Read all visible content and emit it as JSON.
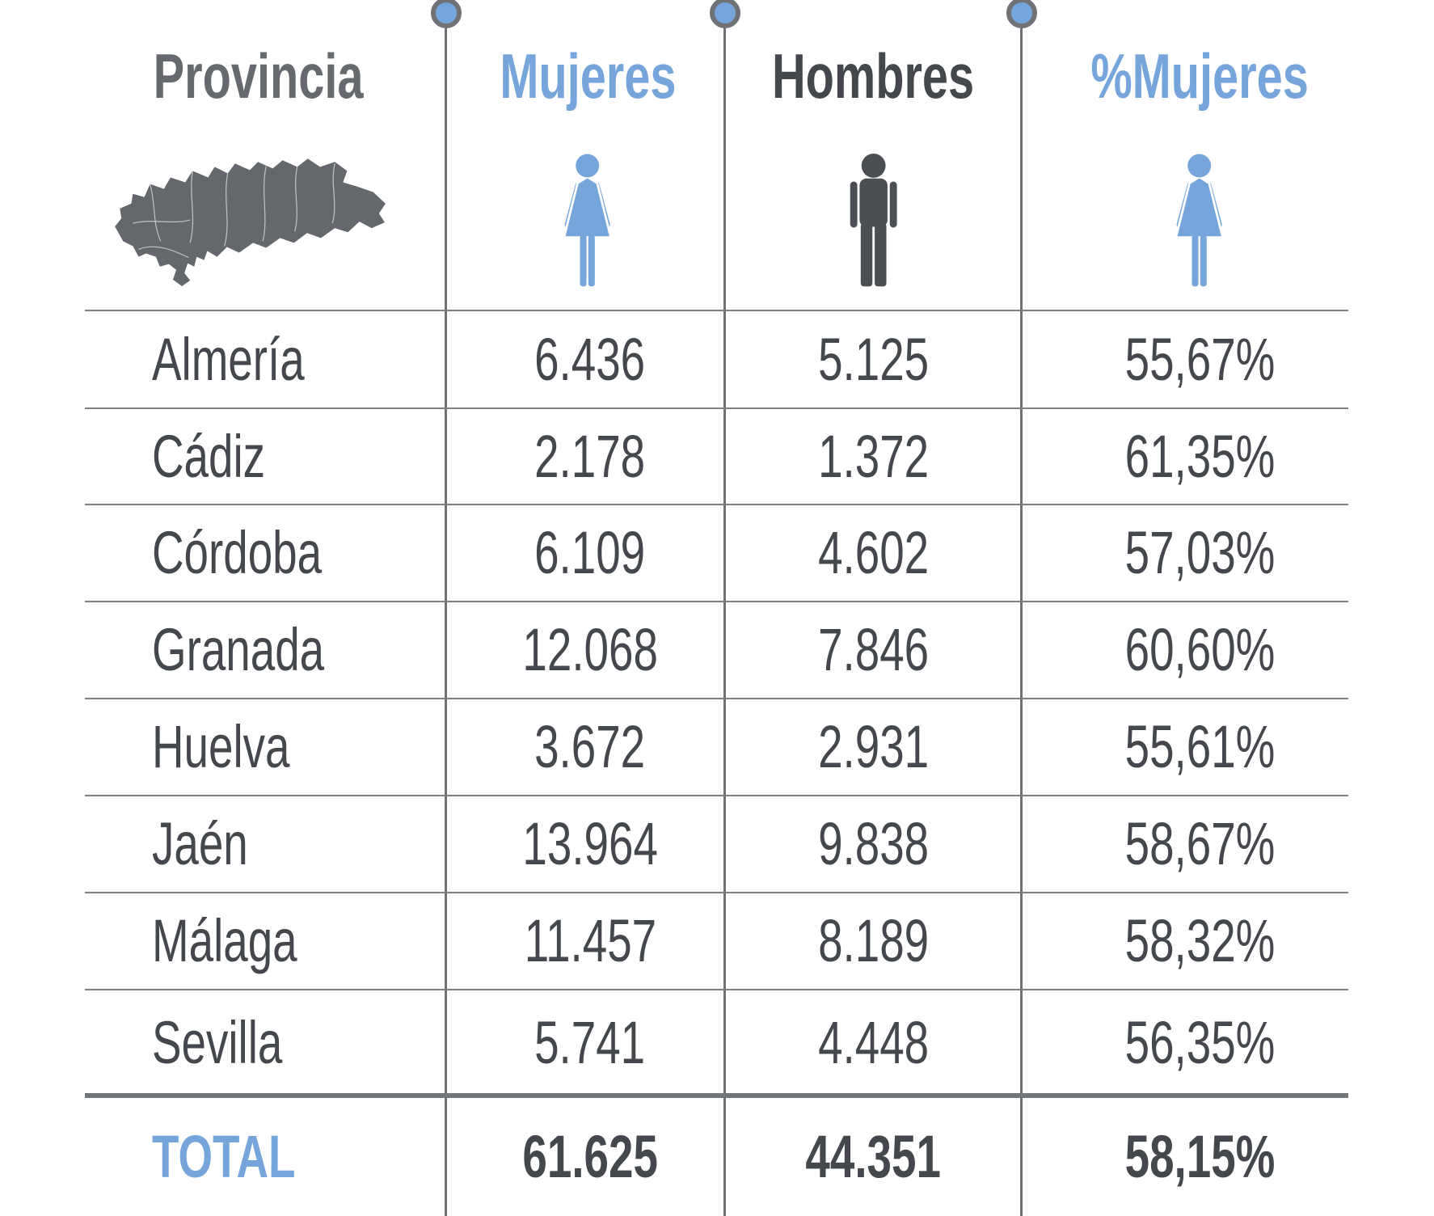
{
  "title": "Tabla de datos por provincia (Andalucía): Mujeres, Hombres y %Mujeres",
  "colors": {
    "blue": "#76a5db",
    "dark": "#44484c",
    "dark_figure": "#4b4f54",
    "header_gray": "#66696d",
    "map_gray": "#64676b",
    "map_border": "#c9ced1",
    "line": "#7e8184",
    "line_dark": "#6e7175",
    "line_thick": "#74777a"
  },
  "icons": {
    "provincia": "andalusia-map",
    "mujeres": "woman-icon",
    "hombres": "man-icon",
    "pct_mujeres": "woman-icon"
  },
  "header": {
    "provincia": "Provincia",
    "mujeres": "Mujeres",
    "hombres": "Hombres",
    "pct_mujeres": "%Mujeres"
  },
  "rows": [
    {
      "provincia": "Almería",
      "mujeres": "6.436",
      "hombres": "5.125",
      "pct": "55,67%"
    },
    {
      "provincia": "Cádiz",
      "mujeres": "2.178",
      "hombres": "1.372",
      "pct": "61,35%"
    },
    {
      "provincia": "Córdoba",
      "mujeres": "6.109",
      "hombres": "4.602",
      "pct": "57,03%"
    },
    {
      "provincia": "Granada",
      "mujeres": "12.068",
      "hombres": "7.846",
      "pct": "60,60%"
    },
    {
      "provincia": "Huelva",
      "mujeres": "3.672",
      "hombres": "2.931",
      "pct": "55,61%"
    },
    {
      "provincia": "Jaén",
      "mujeres": "13.964",
      "hombres": "9.838",
      "pct": "58,67%"
    },
    {
      "provincia": "Málaga",
      "mujeres": "11.457",
      "hombres": "8.189",
      "pct": "58,32%"
    },
    {
      "provincia": "Sevilla",
      "mujeres": "5.741",
      "hombres": "4.448",
      "pct": "56,35%"
    }
  ],
  "total": {
    "label": "TOTAL",
    "mujeres": "61.625",
    "hombres": "44.351",
    "pct": "58,15%"
  },
  "chart_data": {
    "type": "table",
    "title": "",
    "columns": [
      "Provincia",
      "Mujeres",
      "Hombres",
      "%Mujeres"
    ],
    "rows": [
      {
        "provincia": "Almería",
        "mujeres": 6436,
        "hombres": 5125,
        "pct_mujeres": 55.67
      },
      {
        "provincia": "Cádiz",
        "mujeres": 2178,
        "hombres": 1372,
        "pct_mujeres": 61.35
      },
      {
        "provincia": "Córdoba",
        "mujeres": 6109,
        "hombres": 4602,
        "pct_mujeres": 57.03
      },
      {
        "provincia": "Granada",
        "mujeres": 12068,
        "hombres": 7846,
        "pct_mujeres": 60.6
      },
      {
        "provincia": "Huelva",
        "mujeres": 3672,
        "hombres": 2931,
        "pct_mujeres": 55.61
      },
      {
        "provincia": "Jaén",
        "mujeres": 13964,
        "hombres": 9838,
        "pct_mujeres": 58.67
      },
      {
        "provincia": "Málaga",
        "mujeres": 11457,
        "hombres": 8189,
        "pct_mujeres": 58.32
      },
      {
        "provincia": "Sevilla",
        "mujeres": 5741,
        "hombres": 4448,
        "pct_mujeres": 56.35
      }
    ],
    "total": {
      "provincia": "TOTAL",
      "mujeres": 61625,
      "hombres": 44351,
      "pct_mujeres": 58.15
    }
  }
}
